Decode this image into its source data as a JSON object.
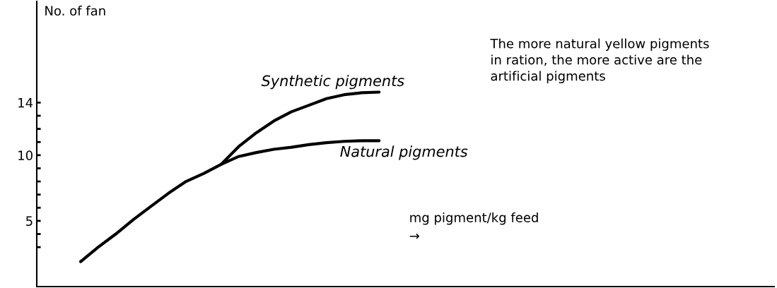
{
  "chart_data": {
    "type": "line",
    "ylabel": "No. of fan",
    "xlabel": "mg pigment/kg feed\n→",
    "categories": [
      null,
      null,
      null,
      null,
      null,
      null,
      null,
      null,
      null,
      null,
      null,
      null,
      null,
      null,
      null,
      null,
      null,
      null,
      null,
      null,
      null,
      null,
      null,
      null,
      null,
      null,
      null,
      null,
      null,
      null,
      null,
      null,
      null,
      null,
      null,
      null,
      null,
      null,
      null,
      null,
      null,
      null
    ],
    "series": [
      {
        "name": "Synthetic pigments",
        "color": "#000000",
        "values": [
          null,
          null,
          null,
          null,
          null,
          null,
          null,
          null,
          null,
          null,
          9.3,
          10.65,
          11.7,
          12.6,
          13.3,
          13.8,
          14.3,
          14.6,
          14.75,
          14.8,
          null,
          null,
          null,
          null,
          null,
          null,
          null,
          null,
          null,
          null,
          null,
          null,
          null,
          null,
          null,
          null,
          null,
          null,
          null,
          null,
          null,
          null
        ]
      },
      {
        "name": "Natural pigments",
        "color": "#000000",
        "values": [
          null,
          null,
          1.9,
          3.0,
          4.0,
          5.1,
          6.1,
          7.1,
          8.0,
          8.6,
          9.3,
          9.9,
          10.2,
          10.45,
          10.6,
          10.8,
          10.95,
          11.05,
          11.1,
          11.1,
          null,
          null,
          null,
          null,
          null,
          null,
          null,
          null,
          null,
          null,
          null,
          null,
          null,
          null,
          null,
          null,
          null,
          null,
          null,
          null,
          null,
          null
        ]
      }
    ],
    "ylim": [
      0,
      21.7
    ],
    "yticks": [
      {
        "value": 3,
        "label": null
      },
      {
        "value": 4,
        "label": null
      },
      5,
      {
        "value": 6,
        "label": null
      },
      {
        "value": 7,
        "label": null
      },
      {
        "value": 8,
        "label": null
      },
      {
        "value": 9,
        "label": null
      },
      10,
      {
        "value": 11,
        "label": null
      },
      {
        "value": 12,
        "label": null
      },
      {
        "value": 13,
        "label": null
      },
      14
    ],
    "tick_labels": "y",
    "grid": false,
    "legend": false,
    "marker": "none",
    "line_style": "solid",
    "annotations": [
      "The more natural yellow pigments\nin ration, the more active are the\nartificial pigments"
    ]
  }
}
